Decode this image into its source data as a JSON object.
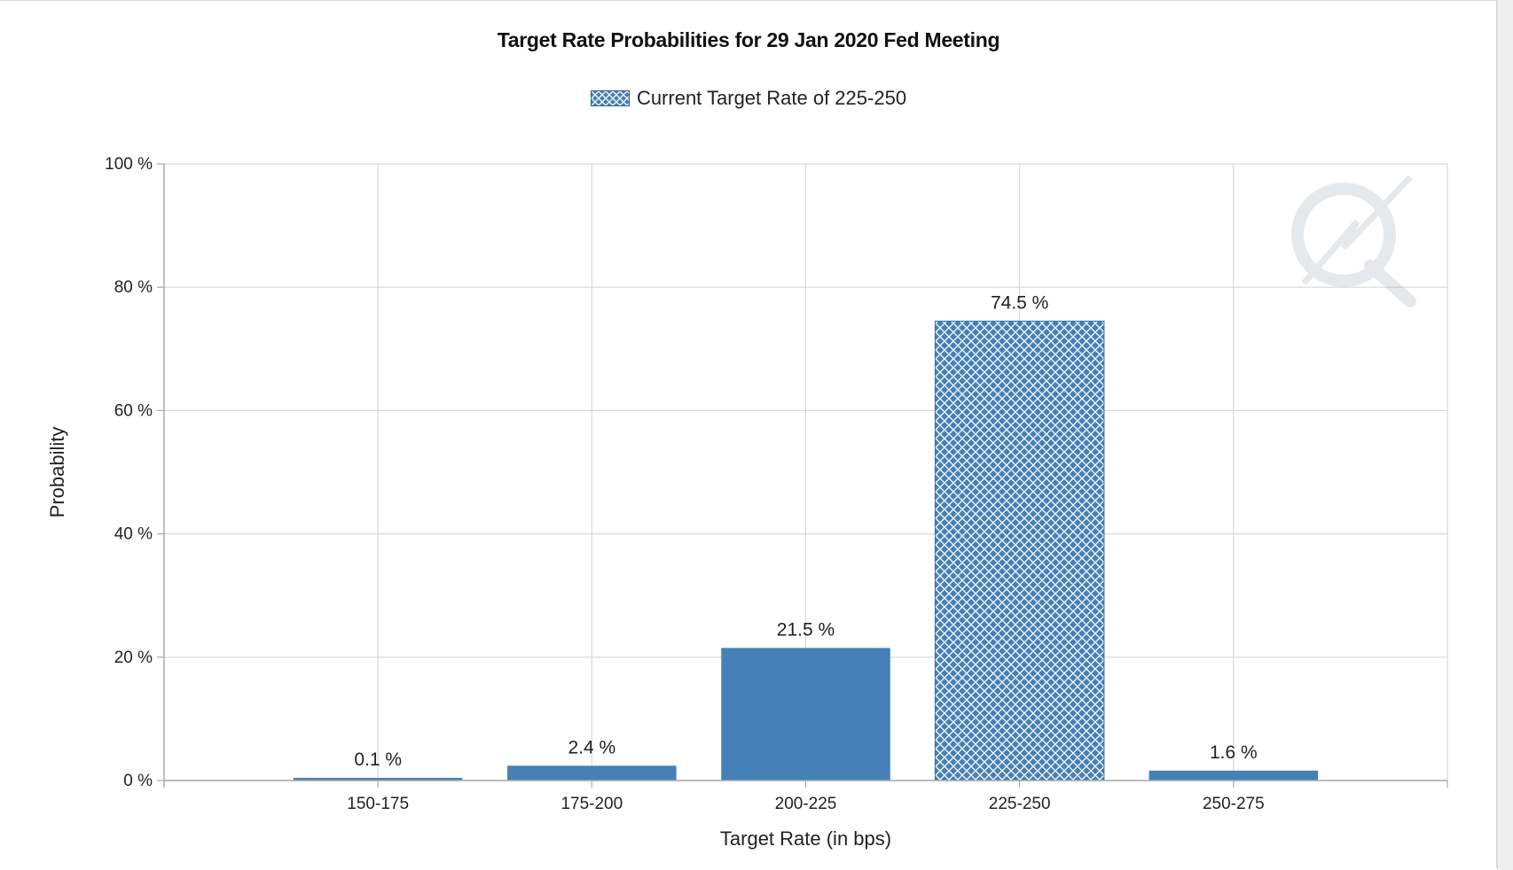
{
  "chart_data": {
    "type": "bar",
    "title": "Target Rate Probabilities for 29 Jan 2020 Fed Meeting",
    "legend": [
      "Current Target Rate of 225-250"
    ],
    "legend_position": "top-center",
    "categories": [
      "150-175",
      "175-200",
      "200-225",
      "225-250",
      "250-275"
    ],
    "values": [
      0.1,
      2.4,
      21.5,
      74.5,
      1.6
    ],
    "data_labels": [
      "0.1 %",
      "2.4 %",
      "21.5 %",
      "74.5 %",
      "1.6 %"
    ],
    "highlight_category": "225-250",
    "xlabel": "Target Rate (in bps)",
    "ylabel": "Probability",
    "ylim": [
      0,
      100
    ],
    "yticks": [
      0,
      20,
      40,
      60,
      80,
      100
    ],
    "ytick_labels": [
      "0 %",
      "20 %",
      "40 %",
      "60 %",
      "80 %",
      "100 %"
    ],
    "grid": true,
    "colors": {
      "bar": "#4580b6",
      "hatch": "#ffffff",
      "grid": "#d9d9d9",
      "axis": "#a8a8a8"
    }
  }
}
